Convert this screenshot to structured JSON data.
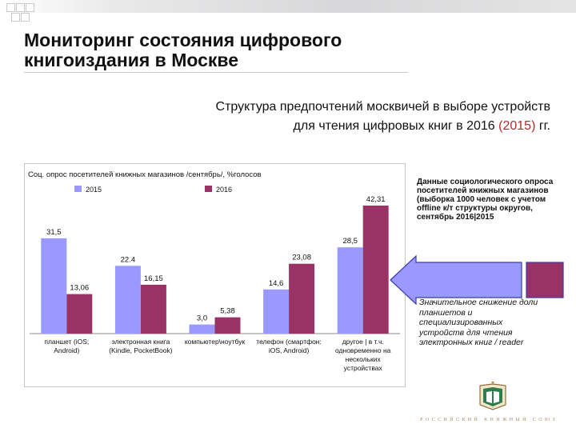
{
  "slide": {
    "title": "Мониторинг состояния цифрового книгоиздания в Москве",
    "subtitle_line1": "Структура предпочтений москвичей в выборе устройств",
    "subtitle_line2_pre": "для чтения цифровых книг в 2016 ",
    "subtitle_line2_red": "(2015)",
    "subtitle_line2_post": " гг.",
    "note_data": "Данные социологического опроса посетителей книжных магазинов (выборка 1000 человек с учетом offline к/т структуры округов, сентябрь 2016|2015",
    "note_drop": "Значительное снижение доли планшетов и специализированных устройств для чтения электронных книг / reader",
    "publisher": "РОССИЙСКИЙ КНИЖНЫЙ СОЮЗ",
    "logo_icon": "book-emblem-icon",
    "arrow_icon": "left-arrow-icon",
    "colors": {
      "series_2015": "#9999ff",
      "series_2016": "#993366",
      "accent_red": "#b22a2a"
    }
  },
  "chart_data": {
    "type": "bar",
    "title": "Соц. опрос посетителей книжных магазинов /сентябрь/, %голосов",
    "categories": [
      [
        "планшет (iOS;",
        "Android)"
      ],
      [
        "электронная книга",
        "(Kindle, PocketBook)"
      ],
      [
        "компьютер\\ноутбук"
      ],
      [
        "телефон (смартфон:",
        "iOS, Android)"
      ],
      [
        "другое | в т.ч.",
        "одновременно на",
        "нескольких",
        "устройствах"
      ]
    ],
    "series": [
      {
        "name": "2015",
        "values": [
          31.5,
          22.4,
          3.0,
          14.6,
          28.5
        ],
        "labels": [
          "31,5",
          "22.4",
          "3,0",
          "14,6",
          "28,5"
        ],
        "color": "#9999ff"
      },
      {
        "name": "2016",
        "values": [
          13.06,
          16.15,
          5.38,
          23.08,
          42.31
        ],
        "labels": [
          "13,06",
          "16,15",
          "5,38",
          "23,08",
          "42,31"
        ],
        "color": "#993366"
      }
    ],
    "ylim": [
      0,
      46
    ],
    "legend": "top-left",
    "grid": false
  }
}
